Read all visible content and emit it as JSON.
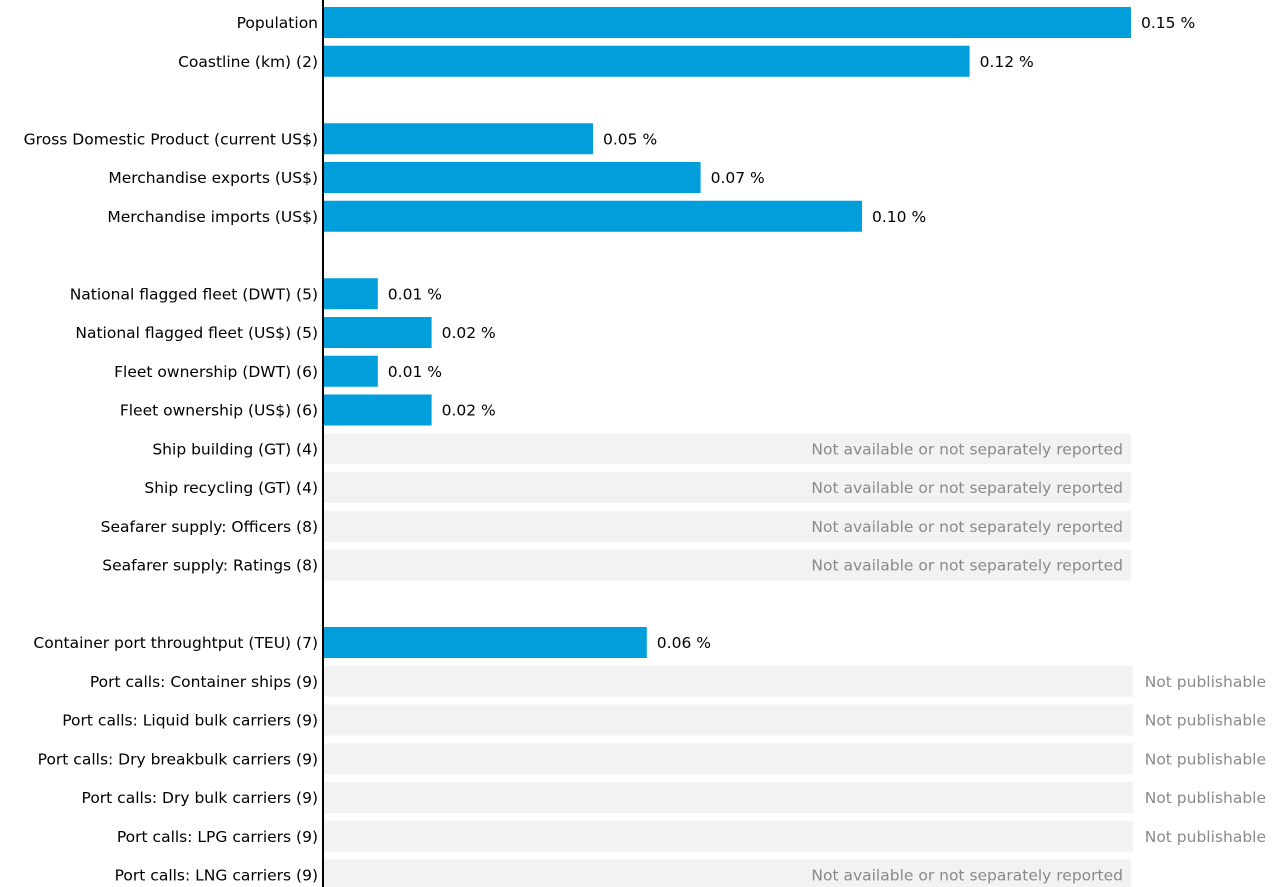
{
  "colors": {
    "bar": "#009edb",
    "placeholder": "#f2f2f2",
    "axis": "#000000",
    "label": "#000000",
    "note": "#8a8a8a"
  },
  "chart_data": {
    "type": "bar",
    "orientation": "horizontal",
    "unit": "%",
    "xlim": [
      0,
      0.15
    ],
    "grid": false,
    "legend": "none",
    "items": [
      {
        "label": "Population",
        "value": 0.15,
        "value_label": "0.15 %"
      },
      {
        "label": "Coastline (km) (2)",
        "value": 0.12,
        "value_label": "0.12 %"
      },
      {
        "gap": true
      },
      {
        "label": "Gross Domestic Product (current US$)",
        "value": 0.05,
        "value_label": "0.05 %"
      },
      {
        "label": "Merchandise exports (US$)",
        "value": 0.07,
        "value_label": "0.07 %"
      },
      {
        "label": "Merchandise imports (US$)",
        "value": 0.1,
        "value_label": "0.10 %"
      },
      {
        "gap": true
      },
      {
        "label": "National flagged fleet (DWT) (5)",
        "value": 0.01,
        "value_label": "0.01 %"
      },
      {
        "label": "National flagged fleet (US$) (5)",
        "value": 0.02,
        "value_label": "0.02 %"
      },
      {
        "label": "Fleet ownership (DWT) (6)",
        "value": 0.01,
        "value_label": "0.01 %"
      },
      {
        "label": "Fleet ownership (US$) (6)",
        "value": 0.02,
        "value_label": "0.02 %"
      },
      {
        "label": "Ship building (GT) (4)",
        "value": null,
        "note": "Not available or not separately reported",
        "note_style": "wide"
      },
      {
        "label": "Ship recycling (GT) (4)",
        "value": null,
        "note": "Not available or not separately reported",
        "note_style": "wide"
      },
      {
        "label": "Seafarer supply: Officers (8)",
        "value": null,
        "note": "Not available or not separately reported",
        "note_style": "wide"
      },
      {
        "label": "Seafarer supply: Ratings (8)",
        "value": null,
        "note": "Not available or not separately reported",
        "note_style": "wide"
      },
      {
        "gap": true
      },
      {
        "label": "Container port throughtput (TEU) (7)",
        "value": 0.06,
        "value_label": "0.06 %"
      },
      {
        "label": "Port calls: Container ships (9)",
        "value": null,
        "note": "Not publishable",
        "note_style": "full"
      },
      {
        "label": "Port calls: Liquid bulk carriers (9)",
        "value": null,
        "note": "Not publishable",
        "note_style": "full"
      },
      {
        "label": "Port calls: Dry breakbulk carriers (9)",
        "value": null,
        "note": "Not publishable",
        "note_style": "full"
      },
      {
        "label": "Port calls: Dry bulk carriers (9)",
        "value": null,
        "note": "Not publishable",
        "note_style": "full"
      },
      {
        "label": "Port calls: LPG carriers (9)",
        "value": null,
        "note": "Not publishable",
        "note_style": "full"
      },
      {
        "label": "Port calls: LNG carriers (9)",
        "value": null,
        "note": "Not available or not separately reported",
        "note_style": "wide"
      }
    ]
  }
}
